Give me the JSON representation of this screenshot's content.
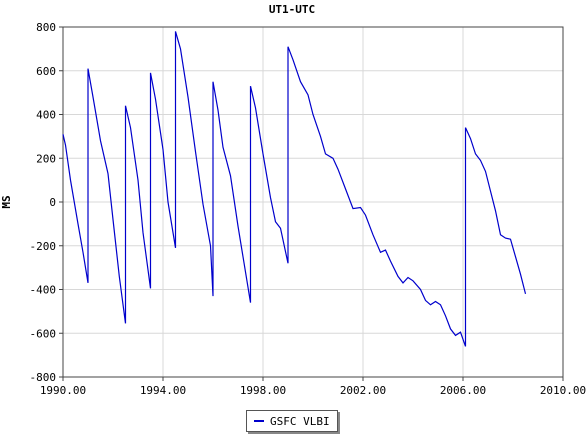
{
  "chart_data": {
    "type": "line",
    "title": "UT1-UTC",
    "xlabel": "",
    "ylabel": "MS",
    "xlim": [
      1990,
      2010
    ],
    "ylim": [
      -800,
      800
    ],
    "x_ticks": [
      "1990.00",
      "1994.00",
      "1998.00",
      "2002.00",
      "2006.00",
      "2010.00"
    ],
    "y_ticks": [
      "800",
      "600",
      "400",
      "200",
      "0",
      "-200",
      "-400",
      "-600",
      "-800"
    ],
    "grid": true,
    "legend_position": "bottom-center",
    "series": [
      {
        "name": "GSFC VLBI",
        "color": "#0000cc",
        "points": [
          [
            1990.0,
            310
          ],
          [
            1990.1,
            260
          ],
          [
            1990.3,
            100
          ],
          [
            1990.6,
            -100
          ],
          [
            1990.8,
            -230
          ],
          [
            1991.0,
            -370
          ],
          [
            1991.0,
            610
          ],
          [
            1991.2,
            480
          ],
          [
            1991.5,
            280
          ],
          [
            1991.8,
            130
          ],
          [
            1992.0,
            -80
          ],
          [
            1992.25,
            -340
          ],
          [
            1992.5,
            -555
          ],
          [
            1992.5,
            440
          ],
          [
            1992.7,
            340
          ],
          [
            1993.0,
            100
          ],
          [
            1993.2,
            -140
          ],
          [
            1993.5,
            -395
          ],
          [
            1993.5,
            590
          ],
          [
            1993.7,
            470
          ],
          [
            1994.0,
            240
          ],
          [
            1994.2,
            0
          ],
          [
            1994.5,
            -210
          ],
          [
            1994.5,
            780
          ],
          [
            1994.7,
            700
          ],
          [
            1995.0,
            480
          ],
          [
            1995.3,
            230
          ],
          [
            1995.6,
            -10
          ],
          [
            1995.9,
            -200
          ],
          [
            1996.0,
            -430
          ],
          [
            1996.0,
            550
          ],
          [
            1996.2,
            420
          ],
          [
            1996.4,
            250
          ],
          [
            1996.7,
            120
          ],
          [
            1997.0,
            -110
          ],
          [
            1997.2,
            -250
          ],
          [
            1997.5,
            -460
          ],
          [
            1997.5,
            530
          ],
          [
            1997.7,
            430
          ],
          [
            1998.0,
            220
          ],
          [
            1998.3,
            20
          ],
          [
            1998.5,
            -90
          ],
          [
            1998.7,
            -120
          ],
          [
            1999.0,
            -280
          ],
          [
            1999.0,
            710
          ],
          [
            1999.2,
            650
          ],
          [
            1999.5,
            550
          ],
          [
            1999.8,
            490
          ],
          [
            2000.0,
            400
          ],
          [
            2000.3,
            300
          ],
          [
            2000.5,
            220
          ],
          [
            2000.8,
            200
          ],
          [
            2001.0,
            150
          ],
          [
            2001.3,
            60
          ],
          [
            2001.6,
            -30
          ],
          [
            2001.9,
            -25
          ],
          [
            2002.1,
            -60
          ],
          [
            2002.4,
            -150
          ],
          [
            2002.7,
            -230
          ],
          [
            2002.9,
            -220
          ],
          [
            2003.1,
            -270
          ],
          [
            2003.4,
            -340
          ],
          [
            2003.6,
            -370
          ],
          [
            2003.8,
            -345
          ],
          [
            2004.0,
            -360
          ],
          [
            2004.3,
            -400
          ],
          [
            2004.5,
            -450
          ],
          [
            2004.7,
            -470
          ],
          [
            2004.9,
            -455
          ],
          [
            2005.1,
            -470
          ],
          [
            2005.3,
            -520
          ],
          [
            2005.5,
            -580
          ],
          [
            2005.7,
            -610
          ],
          [
            2005.9,
            -595
          ],
          [
            2006.1,
            -660
          ],
          [
            2006.1,
            340
          ],
          [
            2006.3,
            290
          ],
          [
            2006.5,
            220
          ],
          [
            2006.7,
            190
          ],
          [
            2006.9,
            140
          ],
          [
            2007.1,
            50
          ],
          [
            2007.3,
            -40
          ],
          [
            2007.5,
            -150
          ],
          [
            2007.7,
            -165
          ],
          [
            2007.9,
            -170
          ],
          [
            2008.1,
            -250
          ],
          [
            2008.3,
            -330
          ],
          [
            2008.5,
            -420
          ]
        ]
      }
    ]
  }
}
